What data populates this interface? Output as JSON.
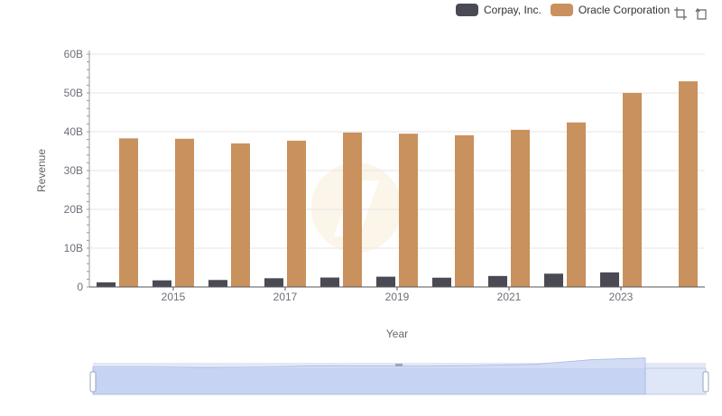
{
  "chart_data": {
    "type": "bar",
    "categories": [
      "2014",
      "2015",
      "2016",
      "2017",
      "2018",
      "2019",
      "2020",
      "2021",
      "2022",
      "2023",
      "2024"
    ],
    "x_tick_labels": [
      "2015",
      "2017",
      "2019",
      "2021",
      "2023"
    ],
    "xlabel": "Year",
    "ylabel": "Revenue",
    "ylim": [
      0,
      60000000000
    ],
    "y_tick_labels": [
      "0",
      "10B",
      "20B",
      "30B",
      "40B",
      "50B",
      "60B"
    ],
    "grid": true,
    "legend_position": "top-right",
    "series": [
      {
        "name": "Corpay, Inc.",
        "color": "#4a4a55",
        "values": [
          1200000000,
          1700000000,
          1800000000,
          2250000000,
          2430000000,
          2650000000,
          2390000000,
          2830000000,
          3430000000,
          3760000000,
          null
        ]
      },
      {
        "name": "Oracle Corporation",
        "color": "#c9915d",
        "values": [
          38300000000,
          38200000000,
          37000000000,
          37700000000,
          39800000000,
          39500000000,
          39100000000,
          40500000000,
          42400000000,
          50000000000,
          53000000000
        ]
      }
    ]
  },
  "toolbox": {
    "icons": [
      "zoom-icon",
      "restore-icon"
    ]
  },
  "data_zoom": {
    "range": [
      0,
      100
    ]
  }
}
